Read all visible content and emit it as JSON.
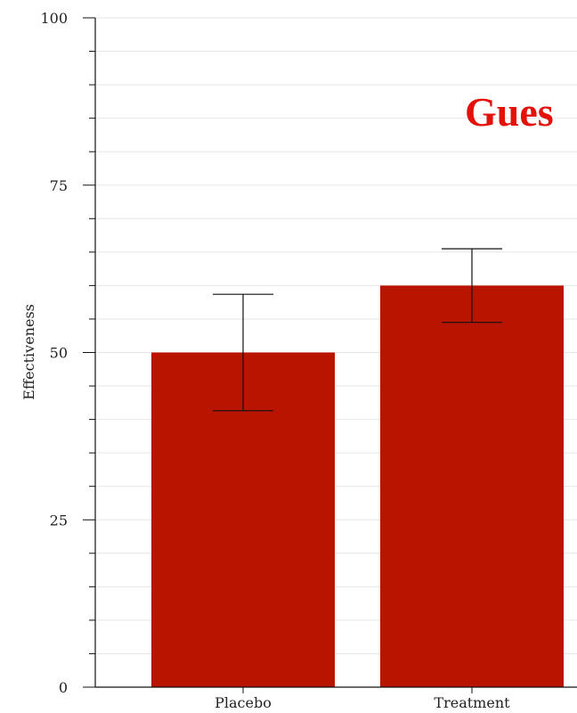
{
  "overlay_text": "Gues",
  "chart_data": {
    "type": "bar",
    "categories": [
      "Placebo",
      "Treatment"
    ],
    "values": [
      50,
      60
    ],
    "error_low": [
      41.3,
      54.5
    ],
    "error_high": [
      58.7,
      65.5
    ],
    "title": "",
    "xlabel": "",
    "ylabel": "Effectiveness",
    "ylim": [
      0,
      100
    ],
    "yticks": [
      0,
      25,
      50,
      75,
      100
    ],
    "ytick_labels": [
      "0",
      "25",
      "50",
      "75",
      "100"
    ],
    "minor_tick_step": 5,
    "grid": true,
    "bar_color": "#b81400",
    "grid_color": "#e6e6e6",
    "overlay_color": "#e3110a"
  }
}
